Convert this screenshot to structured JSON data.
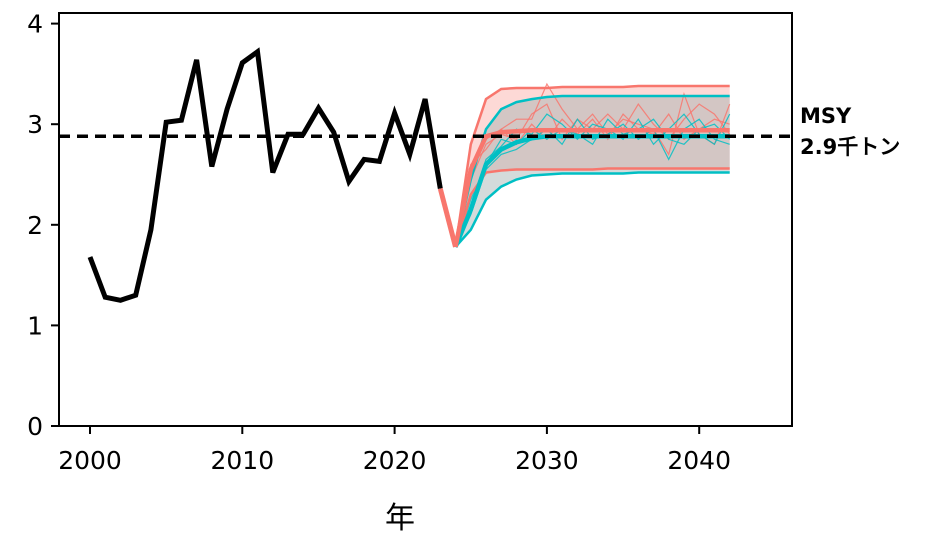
{
  "chart_data": {
    "type": "line",
    "xlabel": "年",
    "ylabel": "",
    "xlim": [
      1998,
      2046
    ],
    "ylim": [
      0,
      4.1
    ],
    "x_ticks": [
      2000,
      2010,
      2020,
      2030,
      2040
    ],
    "y_ticks": [
      0,
      1,
      2,
      3,
      4
    ],
    "grid": false,
    "reference_line": {
      "value": 2.88,
      "style": "dashed",
      "label_line1": "MSY",
      "label_line2": "2.9千トン"
    },
    "colors": {
      "historical": "#000000",
      "scenario_a": "#f8766d",
      "scenario_b": "#00bfc4",
      "band_a": "#f8766d",
      "band_b": "#9fb0b0"
    },
    "historical": {
      "x": [
        2000,
        2001,
        2002,
        2003,
        2004,
        2005,
        2006,
        2007,
        2008,
        2009,
        2010,
        2011,
        2012,
        2013,
        2014,
        2015,
        2016,
        2017,
        2018,
        2019,
        2020,
        2021,
        2022,
        2023
      ],
      "y": [
        1.68,
        1.28,
        1.25,
        1.3,
        1.95,
        3.02,
        3.04,
        3.64,
        2.58,
        3.15,
        3.61,
        3.72,
        2.52,
        2.9,
        2.9,
        3.16,
        2.92,
        2.43,
        2.65,
        2.63,
        3.11,
        2.7,
        3.25,
        2.36
      ]
    },
    "bridge": {
      "x": [
        2023,
        2024
      ],
      "y": [
        2.36,
        1.78
      ]
    },
    "projection_x": [
      2024,
      2025,
      2026,
      2027,
      2028,
      2029,
      2030,
      2031,
      2032,
      2033,
      2034,
      2035,
      2036,
      2037,
      2038,
      2039,
      2040,
      2041,
      2042
    ],
    "scenario_a": {
      "median": [
        1.78,
        2.55,
        2.88,
        2.92,
        2.93,
        2.94,
        2.94,
        2.94,
        2.94,
        2.94,
        2.94,
        2.94,
        2.94,
        2.94,
        2.94,
        2.94,
        2.94,
        2.94,
        2.94
      ],
      "upper": [
        1.78,
        2.8,
        3.25,
        3.35,
        3.36,
        3.36,
        3.36,
        3.37,
        3.37,
        3.37,
        3.37,
        3.37,
        3.38,
        3.38,
        3.38,
        3.38,
        3.38,
        3.38,
        3.38
      ],
      "lower": [
        1.78,
        2.3,
        2.52,
        2.54,
        2.55,
        2.55,
        2.55,
        2.55,
        2.55,
        2.55,
        2.56,
        2.56,
        2.56,
        2.56,
        2.56,
        2.56,
        2.56,
        2.56,
        2.56
      ],
      "samples": [
        [
          1.78,
          2.5,
          2.85,
          2.95,
          3.05,
          3.05,
          3.4,
          3.15,
          2.95,
          3.1,
          2.9,
          3.05,
          3.0,
          2.95,
          2.7,
          3.3,
          2.9,
          2.8,
          3.2
        ],
        [
          1.78,
          2.45,
          2.8,
          2.9,
          2.85,
          3.1,
          3.2,
          2.85,
          3.05,
          2.95,
          3.1,
          2.95,
          3.2,
          3.0,
          2.85,
          3.05,
          3.2,
          3.1,
          2.9
        ],
        [
          1.78,
          2.6,
          2.75,
          2.95,
          2.8,
          3.0,
          2.85,
          3.05,
          2.9,
          3.05,
          2.85,
          3.1,
          2.95,
          2.9,
          3.1,
          2.85,
          2.95,
          3.05,
          3.0
        ]
      ]
    },
    "scenario_b": {
      "median": [
        1.78,
        2.15,
        2.6,
        2.75,
        2.82,
        2.86,
        2.88,
        2.88,
        2.88,
        2.88,
        2.88,
        2.88,
        2.88,
        2.88,
        2.88,
        2.88,
        2.88,
        2.88,
        2.88
      ],
      "upper": [
        1.78,
        2.45,
        2.95,
        3.15,
        3.22,
        3.25,
        3.27,
        3.28,
        3.28,
        3.28,
        3.28,
        3.28,
        3.28,
        3.28,
        3.28,
        3.28,
        3.28,
        3.28,
        3.28
      ],
      "lower": [
        1.78,
        1.95,
        2.25,
        2.38,
        2.45,
        2.49,
        2.5,
        2.51,
        2.51,
        2.51,
        2.51,
        2.51,
        2.52,
        2.52,
        2.52,
        2.52,
        2.52,
        2.52,
        2.52
      ],
      "samples": [
        [
          1.78,
          2.2,
          2.65,
          2.78,
          2.95,
          2.9,
          3.1,
          3.0,
          2.85,
          3.0,
          2.95,
          2.85,
          3.05,
          2.8,
          2.95,
          3.1,
          2.9,
          2.8,
          3.1
        ],
        [
          1.78,
          2.1,
          2.55,
          2.7,
          2.75,
          2.85,
          2.95,
          2.8,
          3.05,
          2.85,
          2.9,
          3.0,
          2.85,
          2.95,
          2.65,
          2.95,
          3.05,
          2.85,
          2.8
        ],
        [
          1.78,
          2.25,
          2.6,
          2.85,
          2.8,
          2.95,
          2.85,
          2.95,
          2.9,
          2.8,
          3.05,
          2.9,
          2.95,
          3.05,
          2.85,
          2.8,
          2.95,
          3.0,
          2.85
        ]
      ]
    }
  }
}
